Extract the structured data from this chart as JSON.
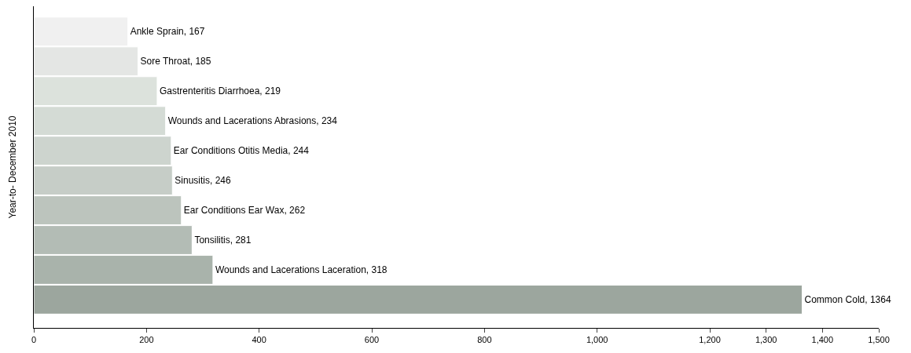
{
  "chart_data": {
    "type": "bar",
    "orientation": "horizontal",
    "ylabel": "Year-to- December 2010",
    "categories": [
      null,
      null,
      null,
      null,
      null,
      null,
      null,
      null,
      null,
      null
    ],
    "values": [
      167,
      185,
      219,
      234,
      244,
      246,
      262,
      281,
      318,
      1364
    ],
    "value_labels": [
      "Ankle Sprain, 167",
      "Sore Throat, 185",
      "Gastrenteritis Diarrhoea, 219",
      "Wounds and Lacerations Abrasions, 234",
      "Ear Conditions Otitis Media, 244",
      "Sinusitis, 246",
      "Ear Conditions Ear Wax, 262",
      "Tonsilitis, 281",
      "Wounds and Lacerations Laceration, 318",
      "Common Cold, 1364"
    ],
    "colors": [
      "#f0f0f0",
      "#e4e6e4",
      "#dce2dc",
      "#d4dbd5",
      "#cdd4ce",
      "#c6cdc7",
      "#bcc4bd",
      "#b3bcb5",
      "#a9b3ab",
      "#9ca69e"
    ],
    "xlim": [
      0,
      1500
    ],
    "xticks": [
      0,
      200,
      400,
      600,
      800,
      {
        "value": 1000,
        "label": "1,000"
      },
      {
        "value": 1200,
        "label": "1,200"
      },
      {
        "value": 1300,
        "label": "1,300"
      },
      {
        "value": 1400,
        "label": "1,400"
      },
      {
        "value": 1500,
        "label": "1,500"
      }
    ],
    "tick_labels": "x"
  }
}
